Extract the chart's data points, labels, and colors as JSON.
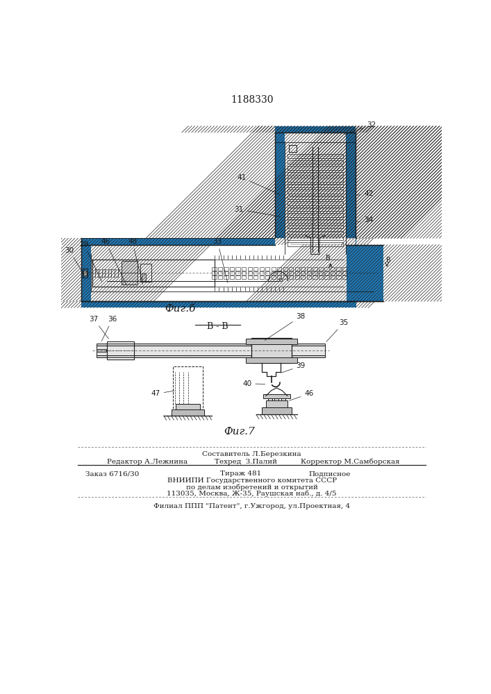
{
  "patent_number": "1188330",
  "fig6_label": "Фиг.б",
  "fig7_label": "Фиг.7",
  "section_label": "B - B",
  "line_color": "#1a1a1a",
  "footer": {
    "sostavitel": "Составитель Л.Березкина",
    "redaktor": "Редактор А.Лежнина",
    "tehred": "Техред  З.Палий",
    "korrektor": "Корректор М.Самборская",
    "zakaz": "Заказ 6716/30",
    "tiraz": "Тираж 481",
    "podpisnoe": "Подписное",
    "vniip1": "ВНИИПИ Государственного комитета СССР",
    "vniip2": "по делам изобретений и открытий",
    "address": "113035, Москва, Ж-35, Раушская наб., д. 4/5",
    "filial": "Филиал ППП \"Патент\", г.Ужгород, ул.Проектная, 4"
  }
}
